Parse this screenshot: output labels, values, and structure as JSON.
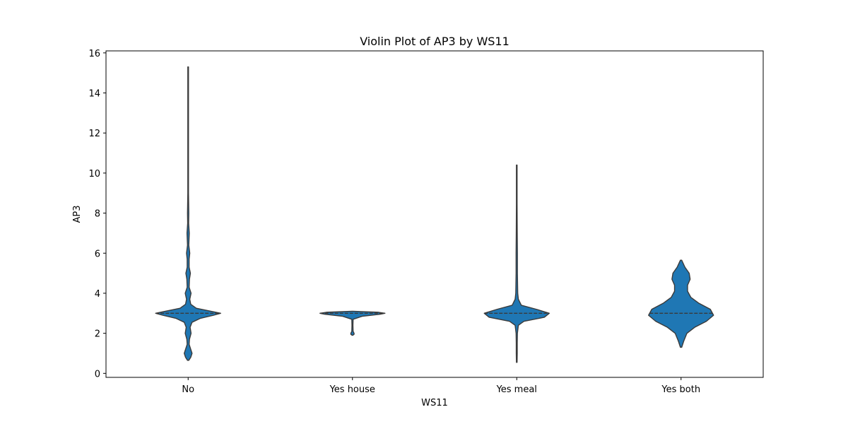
{
  "chart_data": {
    "type": "violin",
    "title": "Violin Plot of AP3 by WS11",
    "xlabel": "WS11",
    "ylabel": "AP3",
    "categories": [
      "No",
      "Yes house",
      "Yes meal",
      "Yes both"
    ],
    "ylim": [
      -0.2,
      16.1
    ],
    "yticks": [
      "0",
      "2",
      "4",
      "6",
      "8",
      "10",
      "12",
      "14",
      "16"
    ],
    "grid": false,
    "inner": "quartile",
    "colors": {
      "fill": "#1f77b4",
      "edge": "#3a3a3a",
      "axes": "#000000"
    },
    "violins": [
      {
        "category": "No",
        "min": 0.65,
        "max": 15.3,
        "median": 3.0,
        "q1": 3.0,
        "q3": 3.0,
        "profile": [
          [
            0.65,
            0.02
          ],
          [
            0.8,
            0.08
          ],
          [
            1.0,
            0.12
          ],
          [
            1.2,
            0.08
          ],
          [
            1.45,
            0.03
          ],
          [
            1.7,
            0.04
          ],
          [
            2.0,
            0.09
          ],
          [
            2.3,
            0.06
          ],
          [
            2.55,
            0.12
          ],
          [
            2.75,
            0.38
          ],
          [
            2.9,
            0.78
          ],
          [
            3.0,
            1.0
          ],
          [
            3.1,
            0.7
          ],
          [
            3.25,
            0.25
          ],
          [
            3.45,
            0.08
          ],
          [
            3.7,
            0.05
          ],
          [
            4.0,
            0.09
          ],
          [
            4.3,
            0.03
          ],
          [
            4.7,
            0.04
          ],
          [
            5.0,
            0.07
          ],
          [
            5.3,
            0.03
          ],
          [
            5.7,
            0.03
          ],
          [
            6.0,
            0.05
          ],
          [
            6.4,
            0.02
          ],
          [
            7.0,
            0.035
          ],
          [
            7.5,
            0.015
          ],
          [
            8.0,
            0.02
          ],
          [
            9.0,
            0.01
          ],
          [
            11.0,
            0.01
          ],
          [
            13.0,
            0.01
          ],
          [
            15.3,
            0.01
          ]
        ]
      },
      {
        "category": "Yes house",
        "min": 1.9,
        "max": 3.1,
        "median": 3.0,
        "q1": 3.0,
        "q3": 3.0,
        "profile": [
          [
            1.9,
            0.01
          ],
          [
            1.95,
            0.05
          ],
          [
            2.0,
            0.05
          ],
          [
            2.1,
            0.02
          ],
          [
            2.4,
            0.015
          ],
          [
            2.7,
            0.02
          ],
          [
            2.85,
            0.3
          ],
          [
            2.95,
            0.85
          ],
          [
            3.0,
            1.0
          ],
          [
            3.05,
            0.8
          ],
          [
            3.1,
            0.01
          ]
        ]
      },
      {
        "category": "Yes meal",
        "min": 0.55,
        "max": 10.4,
        "median": 3.0,
        "q1": 3.0,
        "q3": 3.0,
        "profile": [
          [
            0.55,
            0.01
          ],
          [
            1.0,
            0.015
          ],
          [
            1.5,
            0.015
          ],
          [
            2.0,
            0.02
          ],
          [
            2.4,
            0.05
          ],
          [
            2.6,
            0.22
          ],
          [
            2.8,
            0.85
          ],
          [
            3.0,
            1.0
          ],
          [
            3.2,
            0.6
          ],
          [
            3.4,
            0.14
          ],
          [
            3.7,
            0.05
          ],
          [
            4.0,
            0.03
          ],
          [
            5.0,
            0.02
          ],
          [
            6.0,
            0.02
          ],
          [
            7.0,
            0.015
          ],
          [
            8.5,
            0.01
          ],
          [
            10.4,
            0.01
          ]
        ]
      },
      {
        "category": "Yes both",
        "min": 1.3,
        "max": 5.65,
        "median": 3.0,
        "q1": 3.0,
        "q3": 3.0,
        "profile": [
          [
            1.3,
            0.02
          ],
          [
            1.6,
            0.08
          ],
          [
            2.0,
            0.18
          ],
          [
            2.3,
            0.42
          ],
          [
            2.6,
            0.78
          ],
          [
            2.9,
            1.0
          ],
          [
            3.2,
            0.9
          ],
          [
            3.5,
            0.55
          ],
          [
            3.8,
            0.3
          ],
          [
            4.1,
            0.2
          ],
          [
            4.4,
            0.2
          ],
          [
            4.7,
            0.28
          ],
          [
            5.0,
            0.25
          ],
          [
            5.3,
            0.12
          ],
          [
            5.65,
            0.02
          ]
        ]
      }
    ]
  }
}
